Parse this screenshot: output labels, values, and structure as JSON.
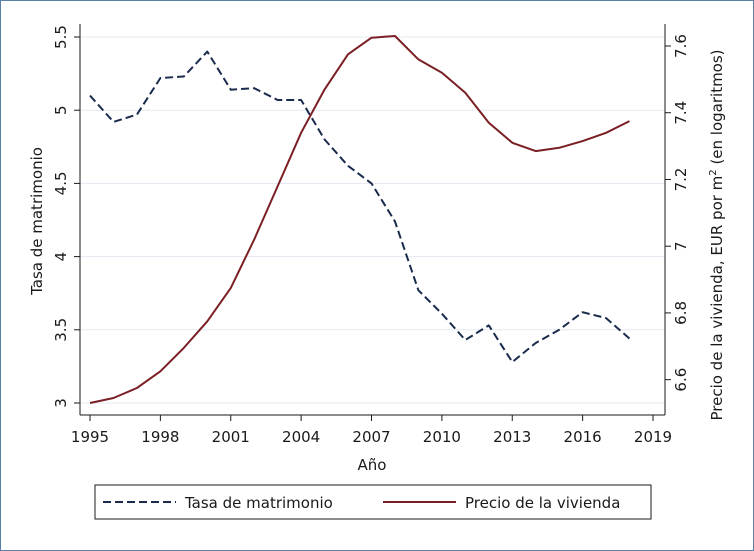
{
  "chart_data": {
    "type": "line",
    "xlabel": "Año",
    "ylabel_left": "Tasa de matrimonio",
    "ylabel_right_prefix": "Precio de la vivienda, EUR por m",
    "ylabel_right_sup": "2",
    "ylabel_right_suffix": " (en logaritmos)",
    "xlim": [
      1995,
      2019
    ],
    "ylim_left": [
      3,
      5.5
    ],
    "ylim_right": [
      6.53,
      7.63
    ],
    "x_ticks": [
      1995,
      1998,
      2001,
      2004,
      2007,
      2010,
      2013,
      2016,
      2019
    ],
    "y_left_ticks": [
      "3",
      "3.5",
      "4",
      "4.5",
      "5",
      "5.5"
    ],
    "y_right_ticks": [
      "6.6",
      "6.8",
      "7",
      "7.2",
      "7.4",
      "7.6"
    ],
    "grid": true,
    "legend_position": "bottom",
    "colors": {
      "tasa": "#1a2b4c",
      "precio": "#7a1f24",
      "grid": "#e4eaf1"
    },
    "series": [
      {
        "name": "Tasa de matrimonio",
        "axis": "left",
        "style": "dashed",
        "x": [
          1995,
          1996,
          1997,
          1998,
          1999,
          2000,
          2001,
          2002,
          2003,
          2004,
          2005,
          2006,
          2007,
          2008,
          2009,
          2010,
          2011,
          2012,
          2013,
          2014,
          2015,
          2016,
          2017,
          2018
        ],
        "values": [
          5.1,
          4.92,
          4.97,
          5.22,
          5.23,
          5.4,
          5.14,
          5.15,
          5.07,
          5.07,
          4.8,
          4.62,
          4.5,
          4.24,
          3.77,
          3.61,
          3.43,
          3.53,
          3.28,
          3.41,
          3.5,
          3.62,
          3.58,
          3.44
        ]
      },
      {
        "name": "Precio de la vivienda",
        "axis": "right",
        "style": "solid",
        "x": [
          1995,
          1996,
          1997,
          1998,
          1999,
          2000,
          2001,
          2002,
          2003,
          2004,
          2005,
          2006,
          2007,
          2008,
          2009,
          2010,
          2011,
          2012,
          2013,
          2014,
          2015,
          2016,
          2017,
          2018
        ],
        "values": [
          6.53,
          6.545,
          6.575,
          6.625,
          6.695,
          6.775,
          6.875,
          7.02,
          7.18,
          7.34,
          7.47,
          7.575,
          7.625,
          7.63,
          7.56,
          7.52,
          7.46,
          7.37,
          7.31,
          7.285,
          7.295,
          7.315,
          7.34,
          7.375
        ]
      }
    ]
  }
}
